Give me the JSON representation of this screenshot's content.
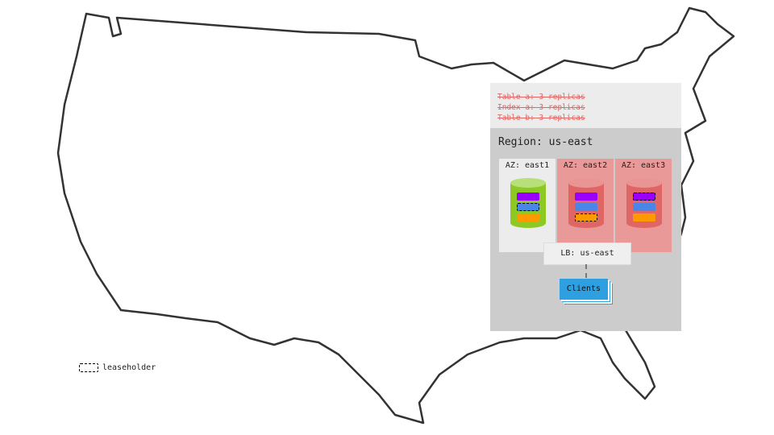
{
  "tables": [
    "Table a: 3 replicas",
    "Index a: 3 replicas",
    "Table b: 3 replicas"
  ],
  "region": {
    "title": "Region: us-east",
    "azs": [
      {
        "label": "AZ: east1",
        "bg": "#ececec",
        "cyl": "#8dc924",
        "cyl_top": "#b8e07a",
        "leaseholder": 1
      },
      {
        "label": "AZ: east2",
        "bg": "#ea9999",
        "cyl": "#e06666",
        "cyl_top": "#eb9494",
        "leaseholder": 2
      },
      {
        "label": "AZ: east3",
        "bg": "#ea9999",
        "cyl": "#e06666",
        "cyl_top": "#eb9494",
        "leaseholder": 0
      }
    ],
    "range_colors": [
      "#9900ff",
      "#4a86e8",
      "#ff9900"
    ],
    "lb": "LB: us-east",
    "clients": "Clients"
  },
  "legend": {
    "label": "leaseholder"
  }
}
